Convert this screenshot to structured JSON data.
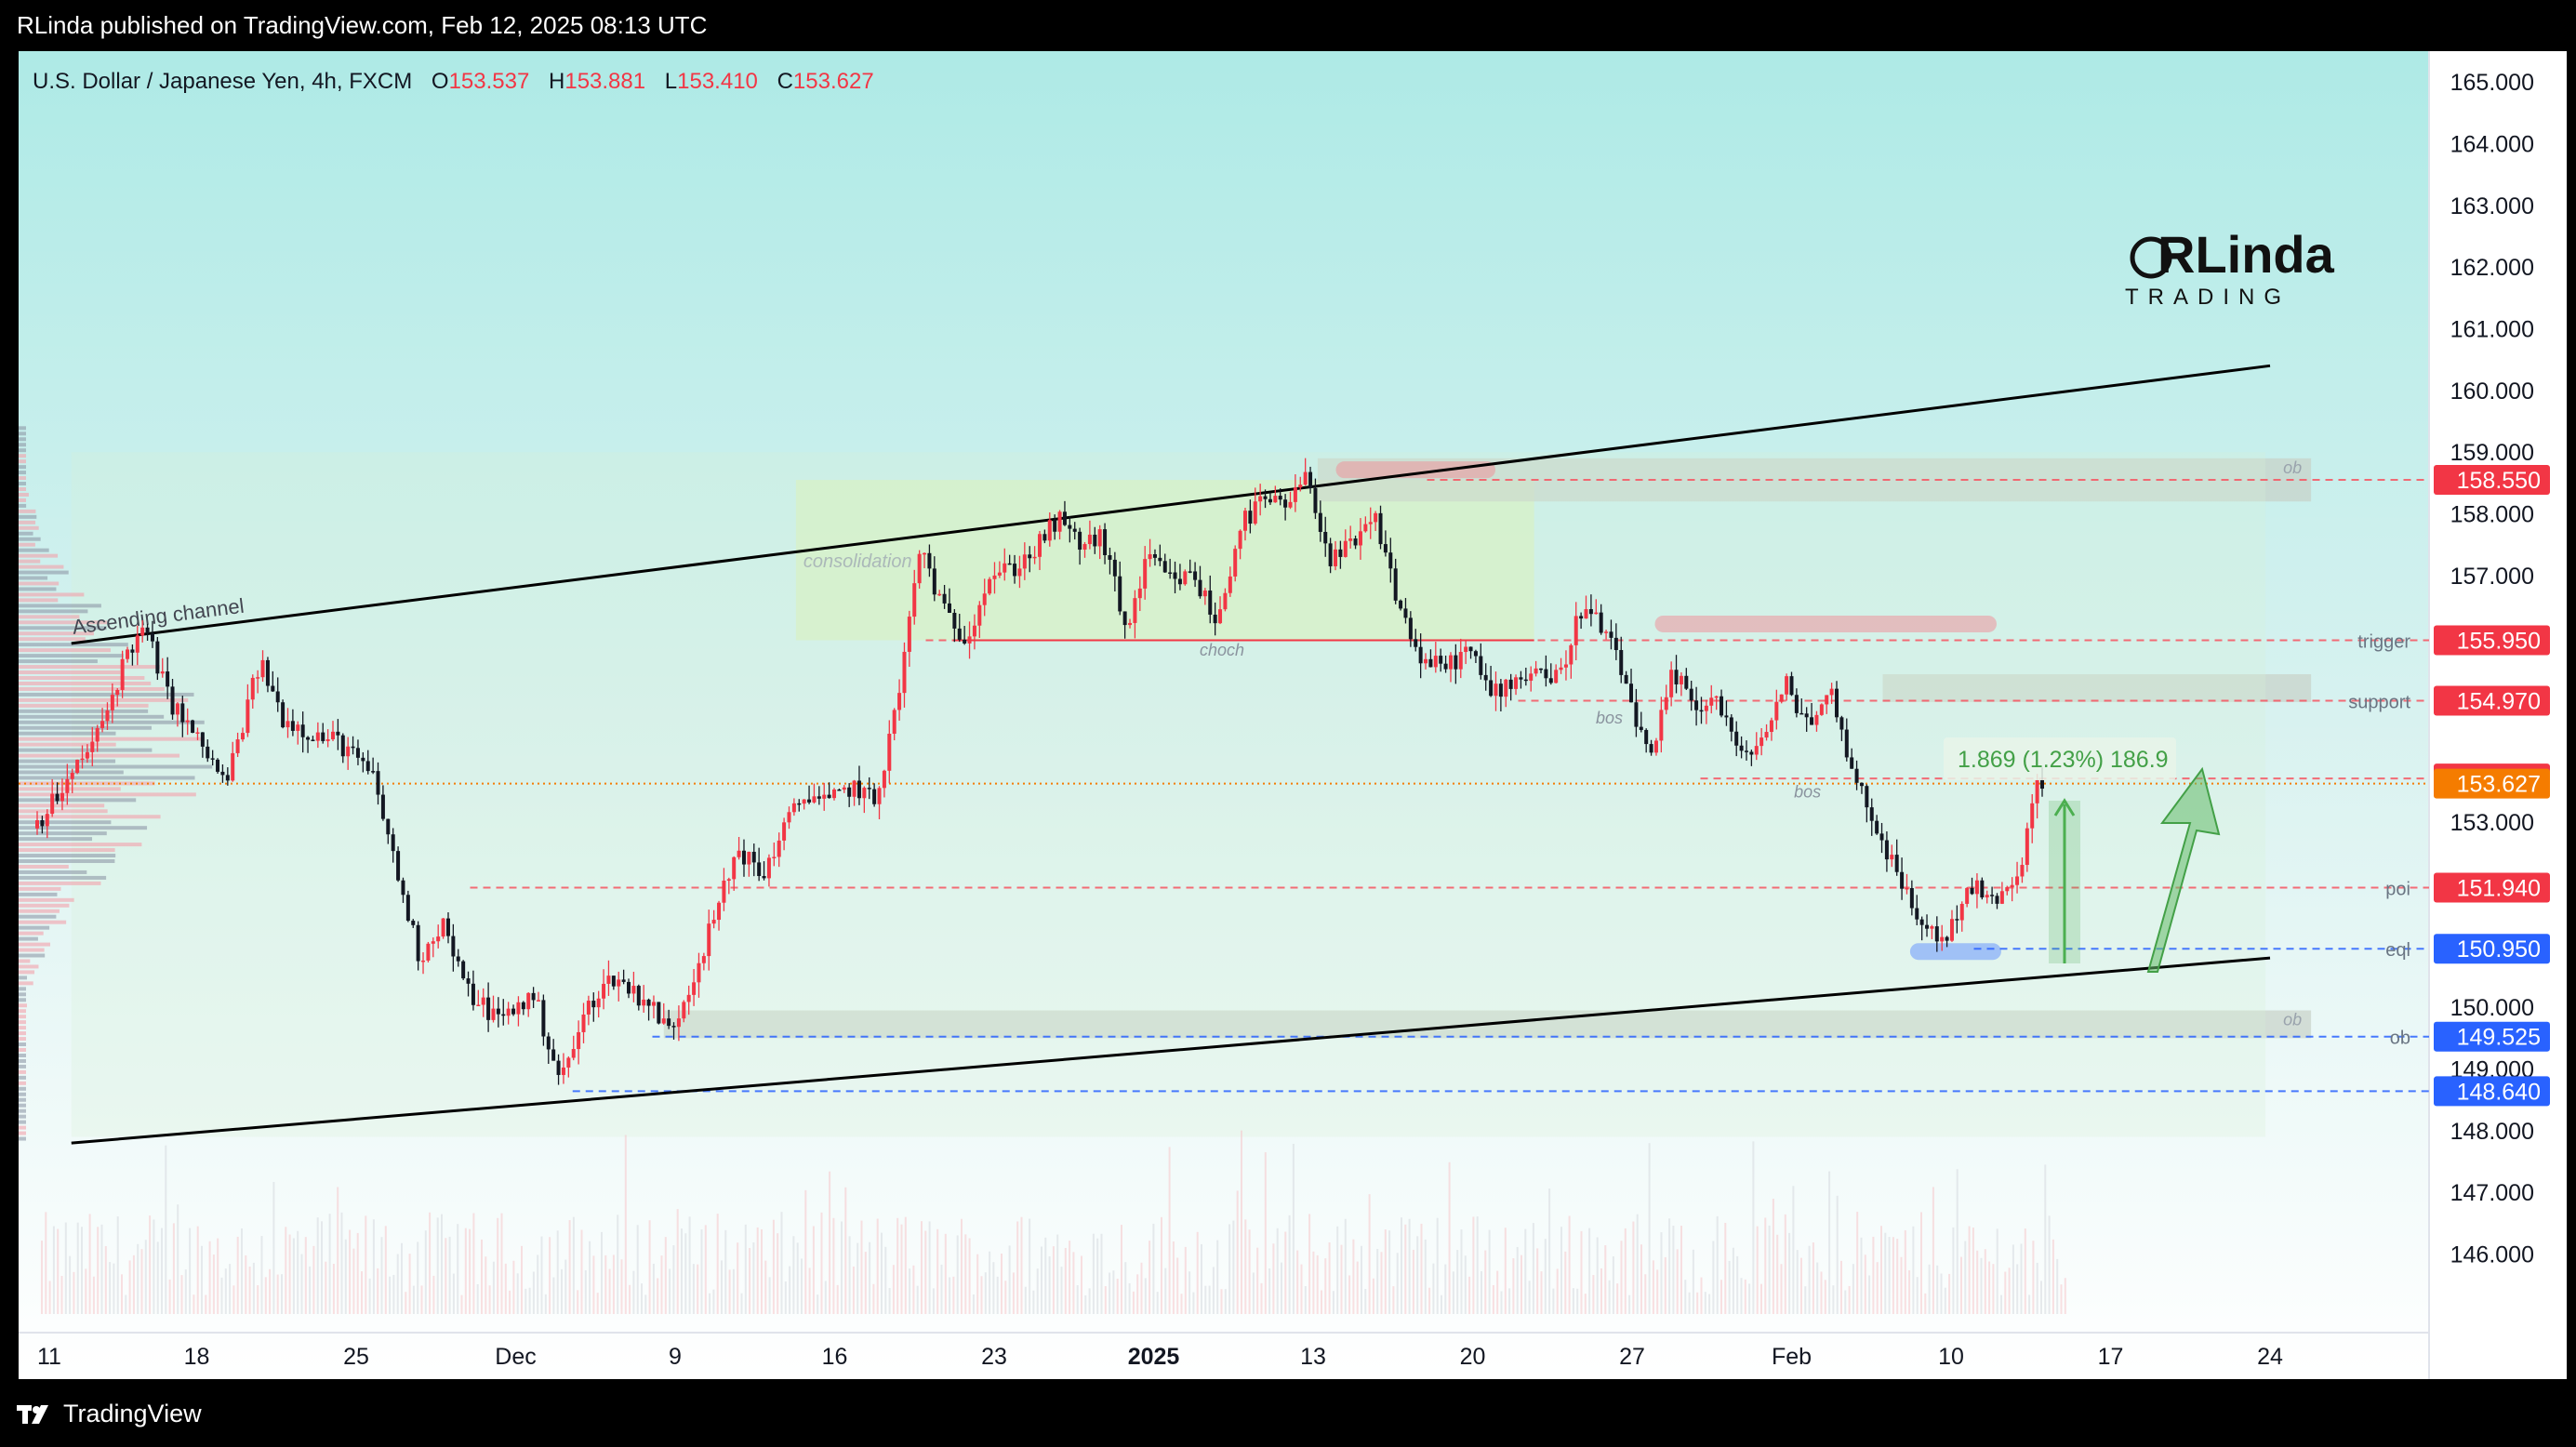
{
  "header": {
    "publisher_line": "RLinda published on TradingView.com, Feb 12, 2025 08:13 UTC"
  },
  "footer": {
    "brand": "TradingView"
  },
  "colors": {
    "up": "#f23645",
    "down": "#131722",
    "accent_green": "#4caf50",
    "support_line": "#f7525f",
    "demand_line": "#2962ff",
    "current_price_tag": "#f57c00"
  },
  "chart_data": {
    "type": "candlestick",
    "symbol_title": "U.S. Dollar / Japanese Yen, 4h, FXCM",
    "ohlc": {
      "o_label": "O",
      "o": "153.537",
      "h_label": "H",
      "h": "153.881",
      "l_label": "L",
      "l": "153.410",
      "c_label": "C",
      "c": "153.627"
    },
    "ylim": [
      145.3,
      165.5
    ],
    "y_ticks": [
      "165.000",
      "164.000",
      "163.000",
      "162.000",
      "161.000",
      "160.000",
      "159.000",
      "158.000",
      "157.000",
      "153.000",
      "150.000",
      "149.000",
      "148.000",
      "147.000",
      "146.000"
    ],
    "x_ticks": [
      {
        "label": "11",
        "day": 0,
        "bold": false
      },
      {
        "label": "18",
        "day": 7,
        "bold": false
      },
      {
        "label": "25",
        "day": 14,
        "bold": false
      },
      {
        "label": "Dec",
        "day": 21,
        "bold": false
      },
      {
        "label": "9",
        "day": 28,
        "bold": false
      },
      {
        "label": "16",
        "day": 35,
        "bold": false
      },
      {
        "label": "23",
        "day": 42,
        "bold": false
      },
      {
        "label": "2025",
        "day": 49,
        "bold": true
      },
      {
        "label": "13",
        "day": 56,
        "bold": false
      },
      {
        "label": "20",
        "day": 63,
        "bold": false
      },
      {
        "label": "27",
        "day": 70,
        "bold": false
      },
      {
        "label": "Feb",
        "day": 77,
        "bold": false
      },
      {
        "label": "10",
        "day": 84,
        "bold": false
      },
      {
        "label": "17",
        "day": 91,
        "bold": false
      },
      {
        "label": "24",
        "day": 98,
        "bold": false
      }
    ],
    "price_path": [
      [
        0,
        152.9
      ],
      [
        1.5,
        153.6
      ],
      [
        3,
        154.5
      ],
      [
        4.2,
        155.8
      ],
      [
        5,
        156.1
      ],
      [
        6,
        155.0
      ],
      [
        7.5,
        154.2
      ],
      [
        8.5,
        153.6
      ],
      [
        10,
        155.6
      ],
      [
        11,
        154.7
      ],
      [
        12.5,
        154.4
      ],
      [
        13.5,
        154.3
      ],
      [
        15,
        153.7
      ],
      [
        16,
        152.2
      ],
      [
        17,
        150.8
      ],
      [
        18,
        151.4
      ],
      [
        19,
        150.3
      ],
      [
        20.5,
        149.8
      ],
      [
        22,
        150.2
      ],
      [
        23.2,
        148.8
      ],
      [
        24.5,
        150.1
      ],
      [
        25.5,
        150.5
      ],
      [
        27,
        150.1
      ],
      [
        28,
        149.6
      ],
      [
        29,
        150.5
      ],
      [
        30,
        151.5
      ],
      [
        31,
        152.6
      ],
      [
        32,
        152.1
      ],
      [
        33,
        152.9
      ],
      [
        34,
        153.5
      ],
      [
        35,
        153.3
      ],
      [
        36,
        153.6
      ],
      [
        37,
        153.3
      ],
      [
        38,
        155.0
      ],
      [
        39,
        157.5
      ],
      [
        40,
        156.4
      ],
      [
        41,
        156.0
      ],
      [
        42,
        157.0
      ],
      [
        43,
        157.1
      ],
      [
        44,
        157.4
      ],
      [
        45,
        157.9
      ],
      [
        46,
        157.5
      ],
      [
        47,
        157.6
      ],
      [
        48,
        156.1
      ],
      [
        49,
        157.3
      ],
      [
        50,
        156.9
      ],
      [
        51,
        157.0
      ],
      [
        52,
        156.2
      ],
      [
        53,
        157.8
      ],
      [
        54,
        158.2
      ],
      [
        55,
        158.1
      ],
      [
        56,
        158.6
      ],
      [
        57,
        157.2
      ],
      [
        58,
        157.5
      ],
      [
        59,
        157.9
      ],
      [
        60,
        156.5
      ],
      [
        61,
        155.6
      ],
      [
        62,
        155.5
      ],
      [
        63,
        155.8
      ],
      [
        64,
        155.1
      ],
      [
        65,
        155.3
      ],
      [
        66,
        155.5
      ],
      [
        67,
        155.3
      ],
      [
        68,
        156.5
      ],
      [
        69,
        156.1
      ],
      [
        70,
        155.2
      ],
      [
        71,
        153.9
      ],
      [
        72,
        155.4
      ],
      [
        73,
        154.9
      ],
      [
        74,
        155.0
      ],
      [
        75,
        154.0
      ],
      [
        76,
        154.4
      ],
      [
        77,
        155.2
      ],
      [
        78,
        154.6
      ],
      [
        79,
        155.1
      ],
      [
        80,
        153.7
      ],
      [
        81,
        152.9
      ],
      [
        82,
        152.0
      ],
      [
        83,
        151.3
      ],
      [
        84,
        151.1
      ],
      [
        85,
        152.0
      ],
      [
        86,
        151.7
      ],
      [
        87,
        151.9
      ],
      [
        88,
        153.6
      ]
    ],
    "channel_lines": [
      {
        "label": "Ascending channel",
        "from": [
          1.5,
          155.9
        ],
        "to": [
          98,
          160.4
        ]
      },
      {
        "label": "",
        "from": [
          1.5,
          147.8
        ],
        "to": [
          98,
          150.8
        ]
      }
    ],
    "levels": [
      {
        "label": "",
        "value": 158.55,
        "tag": "158.550",
        "color": "#f7525f"
      },
      {
        "label": "trigger",
        "value": 155.95,
        "tag": "155.950",
        "color": "#f7525f"
      },
      {
        "label": "support",
        "value": 154.97,
        "tag": "154.970",
        "color": "#f7525f"
      },
      {
        "label": "",
        "value": 153.71,
        "tag": "153.710",
        "color": "#f7525f"
      },
      {
        "label": "poi",
        "value": 151.94,
        "tag": "151.940",
        "color": "#f7525f"
      },
      {
        "label": "eql",
        "value": 150.95,
        "tag": "150.950",
        "color": "#2962ff"
      },
      {
        "label": "ob",
        "value": 149.525,
        "tag": "149.525",
        "color": "#2962ff"
      },
      {
        "label": "",
        "value": 148.64,
        "tag": "148.640",
        "color": "#2962ff"
      }
    ],
    "current_price": {
      "value": 153.627,
      "tag": "153.627"
    },
    "zones": [
      {
        "label": "consolidation",
        "from_day": 33.3,
        "to_day": 65.7,
        "low": 155.95,
        "high": 158.55,
        "color": "#d8f2c0"
      },
      {
        "label": "ob",
        "from_day": 56.2,
        "to_day": 99.8,
        "low": 158.2,
        "high": 158.9,
        "color": "#c8d2c8"
      },
      {
        "label": "ob",
        "from_day": 27.5,
        "to_day": 99.8,
        "low": 149.5,
        "high": 149.95,
        "color": "#c8d2c8"
      },
      {
        "label": "",
        "from_day": 81,
        "to_day": 99.8,
        "low": 154.95,
        "high": 155.4,
        "color": "#c8d2c8"
      }
    ],
    "annotations": [
      {
        "text": "choch",
        "day": 52,
        "price": 155.7
      },
      {
        "text": "bos",
        "day": 69,
        "price": 154.6
      },
      {
        "text": "bos",
        "day": 77.7,
        "price": 153.4
      }
    ],
    "measure_label": "1.869 (1.23%) 186.9",
    "logo_text_top": "RLinda",
    "logo_text_bottom": "TRADING"
  }
}
